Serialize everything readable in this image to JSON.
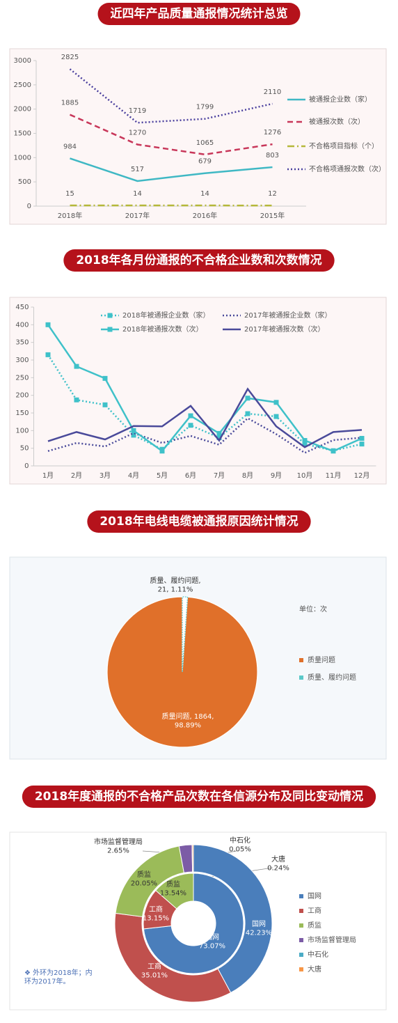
{
  "chart_data": [
    {
      "type": "line",
      "title": "近四年产品质量通报情况统计总览",
      "categories": [
        "2018年",
        "2017年",
        "2016年",
        "2015年"
      ],
      "ylim": [
        0,
        3000
      ],
      "yticks": [
        0,
        500,
        1000,
        1500,
        2000,
        2500,
        3000
      ],
      "data_labels": true,
      "series": [
        {
          "name": "被通报企业数（家）",
          "color": "#3fb8c4",
          "dash": "solid",
          "values": [
            984,
            517,
            679,
            803
          ]
        },
        {
          "name": "被通报次数（次）",
          "color": "#c8375a",
          "dash": "dash",
          "values": [
            1885,
            1270,
            1065,
            1276
          ]
        },
        {
          "name": "不合格项目指标（个）",
          "color": "#b5b83a",
          "dash": "dashdot",
          "values": [
            15,
            14,
            14,
            12
          ]
        },
        {
          "name": "不合格项通报次数（次）",
          "color": "#4a3f9e",
          "dash": "dot",
          "values": [
            2825,
            1719,
            1799,
            2110
          ]
        }
      ]
    },
    {
      "type": "line",
      "title": "2018年各月份通报的不合格企业数和次数情况",
      "categories": [
        "1月",
        "2月",
        "3月",
        "4月",
        "5月",
        "6月",
        "7月",
        "8月",
        "9月",
        "10月",
        "11月",
        "12月"
      ],
      "ylim": [
        0,
        450
      ],
      "yticks": [
        0,
        50,
        100,
        150,
        200,
        250,
        300,
        350,
        400,
        450
      ],
      "data_labels": false,
      "series": [
        {
          "name": "2018年被通报企业数（家）",
          "color": "#3fc1c9",
          "dash": "dot",
          "marker": "square",
          "values": [
            315,
            187,
            173,
            87,
            47,
            115,
            80,
            148,
            140,
            62,
            43,
            62
          ]
        },
        {
          "name": "2017年被通报企业数（家）",
          "color": "#4a4a9a",
          "dash": "dot",
          "values": [
            42,
            65,
            55,
            93,
            65,
            85,
            60,
            135,
            90,
            37,
            73,
            80
          ]
        },
        {
          "name": "2018年被通报次数（次）",
          "color": "#3fc1c9",
          "dash": "solid",
          "marker": "square",
          "values": [
            400,
            282,
            248,
            100,
            42,
            142,
            92,
            192,
            180,
            72,
            42,
            78
          ]
        },
        {
          "name": "2017年被通报次数（次）",
          "color": "#4a4a9a",
          "dash": "solid",
          "values": [
            70,
            96,
            75,
            113,
            112,
            170,
            72,
            218,
            112,
            53,
            96,
            102
          ]
        }
      ]
    },
    {
      "type": "pie",
      "title": "2018年电线电缆被通报原因统计情况",
      "unit": "单位：次",
      "categories": [
        "质量问题",
        "质量、履约问题"
      ],
      "values": [
        1864,
        21
      ],
      "value_labels": [
        "质量问题, 1864,\n98.89%",
        "质量、履约问题,\n21, 1.11%"
      ],
      "colors": [
        "#e0702a",
        "#5bc8c8"
      ]
    },
    {
      "type": "doughnut",
      "title": "2018年度通报的不合格产品次数在各信源分布及同比变动情况",
      "categories": [
        "国网",
        "工商",
        "质监",
        "市场监督管理局",
        "中石化",
        "大唐"
      ],
      "colors": [
        "#4a7ebb",
        "#c0504d",
        "#9bbb59",
        "#7c5ca6",
        "#4bacc6",
        "#f79646"
      ],
      "series": [
        {
          "values": [
            42.23,
            35.01,
            20.05,
            2.65,
            0.05,
            0.24
          ],
          "value_labels": [
            "国网\n42.23%",
            "工商\n35.01%",
            "质监\n20.05%",
            "市场监督管理局\n2.65%",
            "中石化\n0.05%",
            "大唐\n0.24%"
          ]
        },
        {
          "values": [
            73.07,
            13.15,
            13.54,
            null,
            null,
            null
          ],
          "value_labels": [
            "国网\n73.07%",
            "工商\n13.15%",
            "质监\n13.54%",
            null,
            null,
            null
          ]
        }
      ],
      "note": "❖ 外环为2018年；内\n环为2017年。"
    }
  ]
}
